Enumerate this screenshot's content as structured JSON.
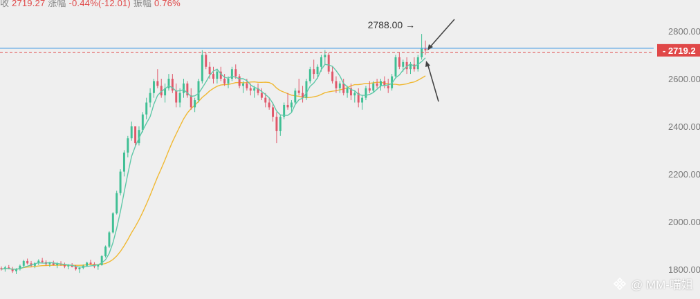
{
  "header": {
    "close_label": "收",
    "close_value": "2719.27",
    "change_label": "涨幅",
    "change_value": "-0.44%(-12.01)",
    "amplitude_label": "振幅",
    "amplitude_value": "0.76%"
  },
  "watermark": {
    "text": "@ MM-喵姐"
  },
  "colors": {
    "background": "#efefef",
    "up": "#3fbf94",
    "down": "#e0586a",
    "ma_fast": "#5fc8a8",
    "ma_slow": "#f0b832",
    "price_line": "#5aa6e6",
    "price_tag": "#e04848"
  },
  "chart_data": {
    "type": "candlestick",
    "title": "",
    "xlabel": "",
    "ylabel": "",
    "ylim": [
      1750,
      2850
    ],
    "y_ticks": [
      "2800.00",
      "2600.00",
      "2400.00",
      "2200.00",
      "2000.00",
      "1800.00"
    ],
    "last_price": "2719.2",
    "last_price_value": 2719.27,
    "high_annotation": {
      "label": "2788.00",
      "value": 2788.0
    },
    "grid": false,
    "series": [
      {
        "kind": "ma",
        "color": "#5fc8a8"
      },
      {
        "kind": "ma",
        "color": "#f0b832"
      }
    ],
    "candles": [
      [
        1805,
        1812,
        1795,
        1800
      ],
      [
        1800,
        1815,
        1790,
        1808
      ],
      [
        1808,
        1818,
        1800,
        1802
      ],
      [
        1802,
        1810,
        1785,
        1792
      ],
      [
        1792,
        1805,
        1780,
        1800
      ],
      [
        1800,
        1820,
        1795,
        1815
      ],
      [
        1815,
        1840,
        1810,
        1835
      ],
      [
        1835,
        1845,
        1820,
        1825
      ],
      [
        1825,
        1835,
        1810,
        1815
      ],
      [
        1815,
        1830,
        1805,
        1826
      ],
      [
        1826,
        1842,
        1818,
        1836
      ],
      [
        1836,
        1848,
        1825,
        1830
      ],
      [
        1830,
        1838,
        1815,
        1822
      ],
      [
        1822,
        1832,
        1810,
        1828
      ],
      [
        1828,
        1836,
        1816,
        1818
      ],
      [
        1818,
        1830,
        1805,
        1824
      ],
      [
        1824,
        1834,
        1815,
        1820
      ],
      [
        1820,
        1828,
        1805,
        1812
      ],
      [
        1812,
        1822,
        1800,
        1818
      ],
      [
        1818,
        1826,
        1808,
        1810
      ],
      [
        1810,
        1818,
        1795,
        1800
      ],
      [
        1800,
        1812,
        1785,
        1806
      ],
      [
        1806,
        1820,
        1800,
        1815
      ],
      [
        1815,
        1832,
        1810,
        1828
      ],
      [
        1828,
        1840,
        1818,
        1822
      ],
      [
        1822,
        1830,
        1805,
        1812
      ],
      [
        1812,
        1822,
        1798,
        1818
      ],
      [
        1818,
        1860,
        1815,
        1855
      ],
      [
        1855,
        1900,
        1850,
        1895
      ],
      [
        1895,
        1960,
        1890,
        1955
      ],
      [
        1955,
        2040,
        1950,
        2035
      ],
      [
        2035,
        2130,
        2030,
        2120
      ],
      [
        2120,
        2220,
        2110,
        2210
      ],
      [
        2210,
        2300,
        2190,
        2290
      ],
      [
        2290,
        2360,
        2270,
        2350
      ],
      [
        2350,
        2420,
        2340,
        2400
      ],
      [
        2400,
        2390,
        2320,
        2330
      ],
      [
        2330,
        2400,
        2320,
        2385
      ],
      [
        2385,
        2460,
        2375,
        2450
      ],
      [
        2450,
        2520,
        2430,
        2500
      ],
      [
        2500,
        2560,
        2480,
        2540
      ],
      [
        2540,
        2600,
        2520,
        2590
      ],
      [
        2590,
        2640,
        2560,
        2570
      ],
      [
        2570,
        2600,
        2520,
        2530
      ],
      [
        2530,
        2580,
        2500,
        2560
      ],
      [
        2560,
        2620,
        2550,
        2600
      ],
      [
        2600,
        2620,
        2540,
        2550
      ],
      [
        2550,
        2580,
        2480,
        2500
      ],
      [
        2500,
        2560,
        2480,
        2540
      ],
      [
        2540,
        2600,
        2520,
        2580
      ],
      [
        2580,
        2590,
        2520,
        2530
      ],
      [
        2530,
        2560,
        2470,
        2480
      ],
      [
        2480,
        2520,
        2460,
        2510
      ],
      [
        2510,
        2600,
        2500,
        2590
      ],
      [
        2590,
        2720,
        2580,
        2700
      ],
      [
        2700,
        2710,
        2640,
        2650
      ],
      [
        2650,
        2670,
        2600,
        2620
      ],
      [
        2620,
        2650,
        2580,
        2600
      ],
      [
        2600,
        2640,
        2580,
        2630
      ],
      [
        2630,
        2650,
        2590,
        2600
      ],
      [
        2600,
        2620,
        2570,
        2580
      ],
      [
        2580,
        2610,
        2560,
        2600
      ],
      [
        2600,
        2650,
        2590,
        2640
      ],
      [
        2640,
        2660,
        2600,
        2610
      ],
      [
        2610,
        2620,
        2560,
        2570
      ],
      [
        2570,
        2590,
        2540,
        2580
      ],
      [
        2580,
        2600,
        2550,
        2560
      ],
      [
        2560,
        2580,
        2530,
        2550
      ],
      [
        2550,
        2570,
        2520,
        2560
      ],
      [
        2560,
        2580,
        2530,
        2540
      ],
      [
        2540,
        2560,
        2510,
        2520
      ],
      [
        2520,
        2540,
        2480,
        2500
      ],
      [
        2500,
        2520,
        2470,
        2480
      ],
      [
        2480,
        2500,
        2420,
        2440
      ],
      [
        2440,
        2460,
        2330,
        2380
      ],
      [
        2380,
        2450,
        2360,
        2440
      ],
      [
        2440,
        2500,
        2430,
        2490
      ],
      [
        2490,
        2540,
        2470,
        2480
      ],
      [
        2480,
        2510,
        2460,
        2500
      ],
      [
        2500,
        2560,
        2490,
        2550
      ],
      [
        2550,
        2600,
        2530,
        2540
      ],
      [
        2540,
        2570,
        2500,
        2520
      ],
      [
        2520,
        2600,
        2510,
        2590
      ],
      [
        2590,
        2650,
        2580,
        2640
      ],
      [
        2640,
        2680,
        2600,
        2620
      ],
      [
        2620,
        2660,
        2600,
        2650
      ],
      [
        2650,
        2700,
        2630,
        2690
      ],
      [
        2690,
        2720,
        2660,
        2700
      ],
      [
        2700,
        2710,
        2620,
        2630
      ],
      [
        2630,
        2650,
        2580,
        2590
      ],
      [
        2590,
        2610,
        2540,
        2560
      ],
      [
        2560,
        2590,
        2540,
        2580
      ],
      [
        2580,
        2600,
        2530,
        2540
      ],
      [
        2540,
        2570,
        2520,
        2560
      ],
      [
        2560,
        2580,
        2510,
        2530
      ],
      [
        2530,
        2550,
        2500,
        2540
      ],
      [
        2540,
        2560,
        2480,
        2500
      ],
      [
        2500,
        2530,
        2470,
        2520
      ],
      [
        2520,
        2570,
        2510,
        2560
      ],
      [
        2560,
        2590,
        2540,
        2550
      ],
      [
        2550,
        2590,
        2540,
        2580
      ],
      [
        2580,
        2600,
        2560,
        2570
      ],
      [
        2570,
        2600,
        2550,
        2590
      ],
      [
        2590,
        2610,
        2560,
        2570
      ],
      [
        2570,
        2600,
        2540,
        2560
      ],
      [
        2560,
        2620,
        2550,
        2610
      ],
      [
        2610,
        2700,
        2600,
        2690
      ],
      [
        2690,
        2710,
        2640,
        2650
      ],
      [
        2650,
        2680,
        2630,
        2670
      ],
      [
        2670,
        2690,
        2620,
        2640
      ],
      [
        2640,
        2670,
        2620,
        2660
      ],
      [
        2660,
        2690,
        2630,
        2640
      ],
      [
        2640,
        2700,
        2630,
        2690
      ],
      [
        2690,
        2788,
        2680,
        2730
      ],
      [
        2730,
        2760,
        2700,
        2719
      ]
    ]
  }
}
